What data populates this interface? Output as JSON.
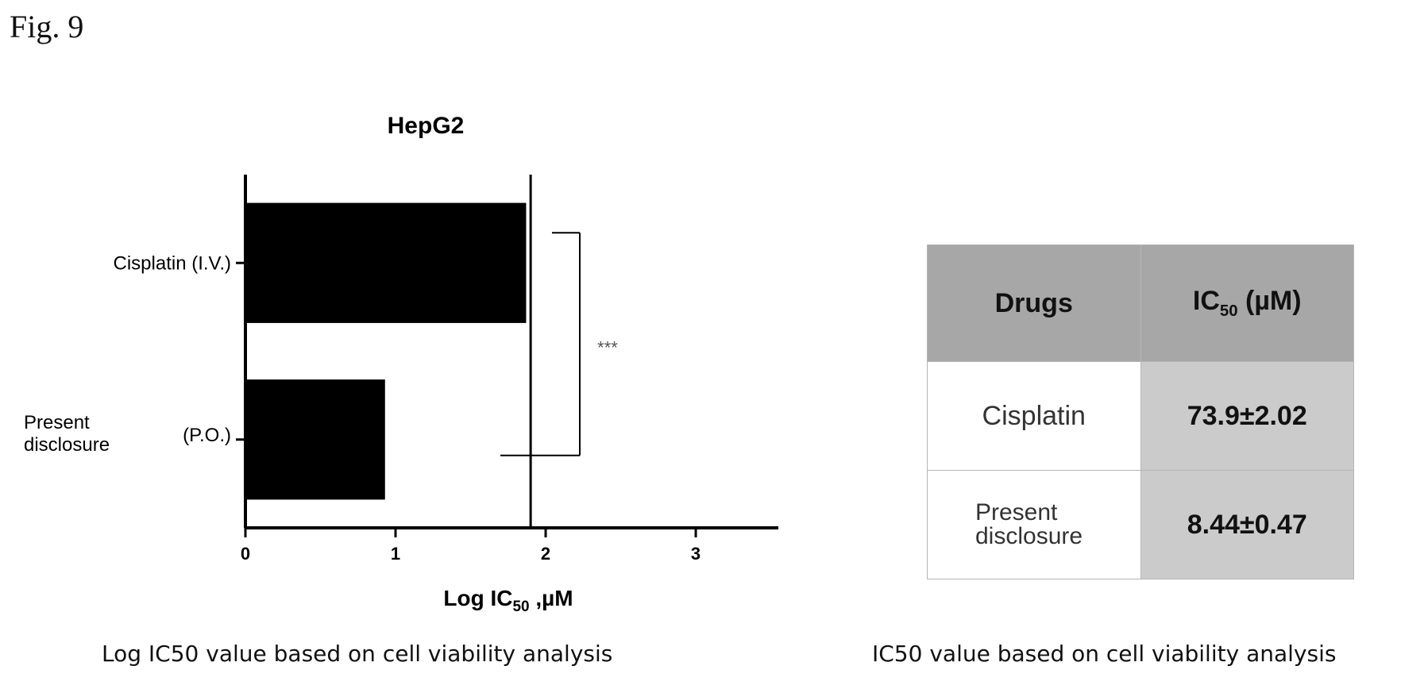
{
  "figure_label": "Fig. 9",
  "chart_data": {
    "type": "bar",
    "orientation": "horizontal",
    "title": "HepG2",
    "categories": [
      [
        "Cisplatin (I.V.)"
      ],
      [
        "Present",
        "disclosure",
        "(P.O.)"
      ]
    ],
    "values": [
      1.87,
      0.93
    ],
    "xlabel": {
      "main": "Log IC",
      "sub": "50",
      "unit": " ,µM"
    },
    "xlim": [
      0,
      3.55
    ],
    "xticks": [
      0,
      1,
      2,
      3
    ],
    "reference_line_x": 1.9,
    "significance": {
      "between": [
        0,
        1
      ],
      "label": "***"
    },
    "grid": false,
    "bar_color": "#000000"
  },
  "captions": {
    "left": "Log IC50 value based on cell viability analysis",
    "right": "IC50 value based on cell viability analysis"
  },
  "table": {
    "header_drug": "Drugs",
    "header_ic_main": "IC",
    "header_ic_sub": "50",
    "header_ic_unit": " (µM)",
    "rows": [
      {
        "drug_lines": [
          "Cisplatin"
        ],
        "value": "73.9±2.02"
      },
      {
        "drug_lines": [
          "Present",
          "disclosure"
        ],
        "value": "8.44±0.47"
      }
    ]
  }
}
